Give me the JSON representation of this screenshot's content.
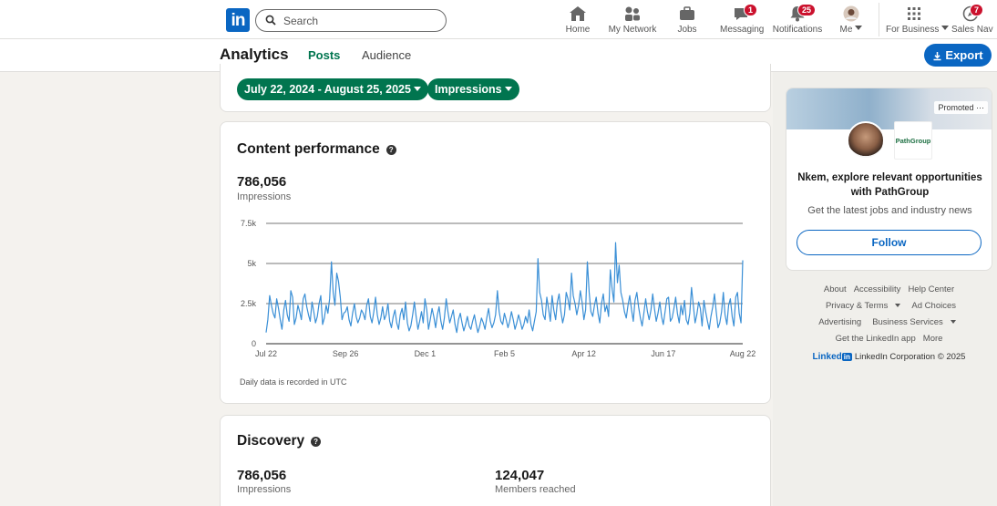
{
  "nav": {
    "logo": "in",
    "search_placeholder": "Search",
    "items": [
      {
        "label": "Home"
      },
      {
        "label": "My Network"
      },
      {
        "label": "Jobs"
      },
      {
        "label": "Messaging",
        "badge": "1"
      },
      {
        "label": "Notifications",
        "badge": "25"
      },
      {
        "label": "Me"
      },
      {
        "label": "For Business"
      },
      {
        "label": "Sales Nav",
        "badge": "7"
      }
    ]
  },
  "subnav": {
    "title": "Analytics",
    "tabs": [
      {
        "label": "Posts"
      },
      {
        "label": "Audience"
      }
    ],
    "export_label": "Export"
  },
  "filters": {
    "date_range": "July 22, 2024 - August 25, 2025",
    "metric": "Impressions"
  },
  "content_performance": {
    "title": "Content performance",
    "value": "786,056",
    "value_label": "Impressions",
    "note": "Daily data is recorded in UTC"
  },
  "chart_data": {
    "type": "line",
    "title": "",
    "xlabel": "",
    "ylabel": "Impressions",
    "ylim": [
      0,
      7500
    ],
    "yticks": [
      "0",
      "2.5k",
      "5k",
      "7.5k"
    ],
    "ytick_values": [
      0,
      2500,
      5000,
      7500
    ],
    "xticks": [
      "Jul 22",
      "Sep 26",
      "Dec 1",
      "Feb 5",
      "Apr 12",
      "Jun 17",
      "Aug 22"
    ],
    "series": [
      {
        "name": "Impressions",
        "values": [
          700,
          1500,
          3000,
          2400,
          1900,
          1600,
          2800,
          2200,
          1500,
          900,
          2100,
          2700,
          1800,
          1400,
          3300,
          2900,
          1200,
          1600,
          2400,
          2000,
          1500,
          2800,
          3100,
          2300,
          1800,
          1400,
          2600,
          2000,
          1300,
          1700,
          2500,
          3000,
          1200,
          1600,
          2400,
          1900,
          2800,
          5100,
          3200,
          2400,
          4400,
          3900,
          2900,
          1500,
          1900,
          2000,
          2300,
          1500,
          1100,
          1900,
          2500,
          1700,
          1300,
          1600,
          2100,
          1900,
          1500,
          2400,
          2800,
          1700,
          1300,
          2000,
          2900,
          1800,
          1200,
          1600,
          2300,
          1500,
          1800,
          2500,
          1400,
          1000,
          1700,
          2100,
          1300,
          900,
          1800,
          2200,
          1500,
          2600,
          1300,
          800,
          1100,
          1800,
          2600,
          1700,
          900,
          1400,
          2000,
          1300,
          2800,
          2100,
          900,
          1500,
          2200,
          1700,
          1000,
          1800,
          2300,
          1400,
          900,
          1600,
          2800,
          2000,
          1300,
          1700,
          2100,
          1200,
          700,
          1500,
          1900,
          1300,
          800,
          1200,
          1700,
          1100,
          900,
          1400,
          1800,
          1200,
          700,
          1100,
          1600,
          1300,
          900,
          1600,
          2200,
          1400,
          1000,
          1300,
          1800,
          3300,
          2000,
          1400,
          1200,
          1900,
          1500,
          1000,
          1400,
          2000,
          1500,
          900,
          1300,
          1800,
          1400,
          900,
          1200,
          1700,
          1300,
          2100,
          1200,
          800,
          1400,
          2000,
          5300,
          3200,
          2700,
          1800,
          1500,
          2900,
          2200,
          1400,
          3000,
          2100,
          1500,
          2600,
          3100,
          2000,
          1300,
          1800,
          3200,
          2800,
          2100,
          4400,
          3000,
          2500,
          1800,
          2400,
          3300,
          2600,
          1500,
          2100,
          5100,
          3200,
          2000,
          1700,
          2400,
          2900,
          1900,
          1300,
          2500,
          3100,
          2000,
          2400,
          1700,
          4600,
          3400,
          2600,
          6300,
          3800,
          4900,
          3200,
          2700,
          2000,
          1600,
          2400,
          3000,
          2100,
          1400,
          2700,
          3200,
          2300,
          1600,
          1100,
          1900,
          2800,
          2000,
          1500,
          2100,
          3100,
          2200,
          1400,
          1900,
          2600,
          1700,
          1200,
          2000,
          2800,
          2900,
          1400,
          1600,
          2200,
          2900,
          1900,
          1300,
          2400,
          1800,
          2700,
          1500,
          1200,
          1900,
          3500,
          2400,
          1300,
          1800,
          2600,
          2200,
          1100,
          2700,
          2000,
          1400,
          900,
          1700,
          2300,
          3100,
          2000,
          1000,
          1300,
          2000,
          3200,
          1800,
          1200,
          2400,
          2800,
          1700,
          1100,
          2900,
          3200,
          1900,
          1300,
          5200
        ]
      }
    ]
  },
  "discovery": {
    "title": "Discovery",
    "impressions": "786,056",
    "impressions_label": "Impressions",
    "members": "124,047",
    "members_label": "Members reached"
  },
  "ad": {
    "promoted": "Promoted",
    "company": "PathGroup",
    "headline": "Nkem, explore relevant opportunities with PathGroup",
    "sub": "Get the latest jobs and industry news",
    "follow": "Follow"
  },
  "footer": {
    "row1": [
      "About",
      "Accessibility",
      "Help Center"
    ],
    "row2": [
      "Privacy & Terms",
      "Ad Choices"
    ],
    "row3": [
      "Advertising",
      "Business Services"
    ],
    "row4": [
      "Get the LinkedIn app",
      "More"
    ],
    "corp_logo": "Linked",
    "corp_logo_in": "in",
    "corp": "LinkedIn Corporation © 2025"
  },
  "colors": {
    "brand_blue": "#0a66c2",
    "green": "#01754f",
    "line": "#3a8fd6",
    "badge": "#cb112d"
  }
}
